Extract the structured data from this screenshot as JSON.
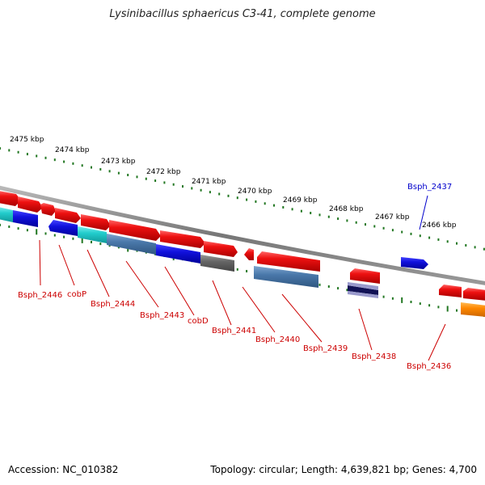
{
  "title": "Lysinibacillus sphaericus C3-41, complete genome",
  "footer": {
    "accession": "Accession: NC_010382",
    "topology": "Topology: circular; Length: 4,639,821 bp; Genes: 4,700"
  },
  "scale_labels": [
    "2475 kbp",
    "2474 kbp",
    "2473 kbp",
    "2472 kbp",
    "2471 kbp",
    "2470 kbp",
    "2469 kbp",
    "2468 kbp",
    "2467 kbp",
    "2466 kbp"
  ],
  "gene_labels": [
    {
      "text": "Bsph_2446",
      "color": "#cc0000"
    },
    {
      "text": "cobP",
      "color": "#cc0000"
    },
    {
      "text": "Bsph_2444",
      "color": "#cc0000"
    },
    {
      "text": "Bsph_2443",
      "color": "#cc0000"
    },
    {
      "text": "cobD",
      "color": "#cc0000"
    },
    {
      "text": "Bsph_2441",
      "color": "#cc0000"
    },
    {
      "text": "Bsph_2440",
      "color": "#cc0000"
    },
    {
      "text": "Bsph_2439",
      "color": "#cc0000"
    },
    {
      "text": "Bsph_2438",
      "color": "#cc0000"
    },
    {
      "text": "Bsph_2436",
      "color": "#cc0000"
    },
    {
      "text": "Bsph_2437",
      "color": "#0000cc"
    }
  ],
  "colors": {
    "forward_gene": "#ee1111",
    "reverse_gene": "#1111dd",
    "cyan_feature": "#22cccc",
    "steelblue_feature": "#4a78aa",
    "gray_feature": "#666666",
    "navy_feature": "#111155",
    "orange_feature": "#ff8800",
    "backbone": "#888888",
    "tick_marks": "#227722"
  }
}
